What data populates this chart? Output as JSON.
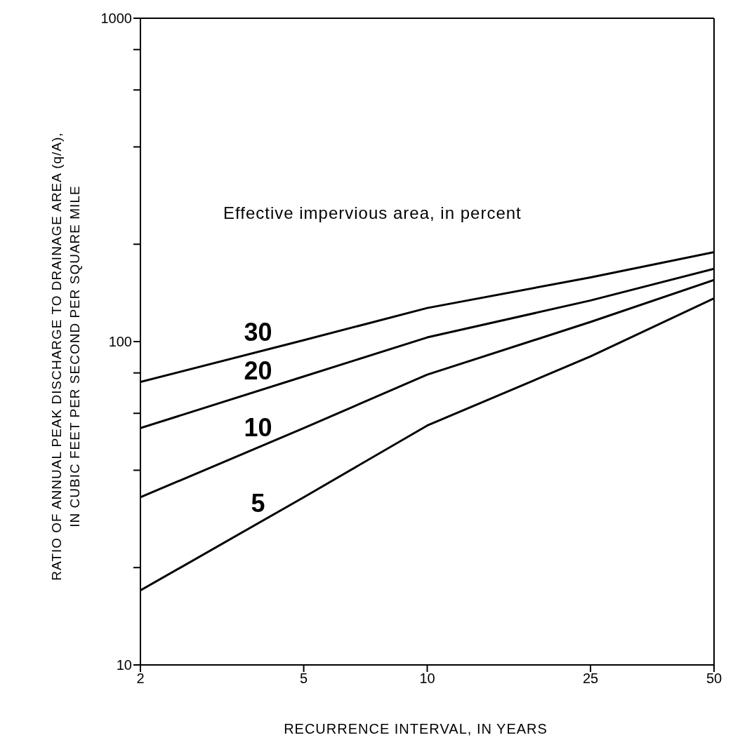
{
  "chart_data": {
    "type": "line",
    "xlabel": "RECURRENCE INTERVAL, IN YEARS",
    "ylabel": "RATIO OF ANNUAL PEAK DISCHARGE TO DRAINAGE AREA (q/A),\nIN CUBIC FEET PER SECOND PER SQUARE MILE",
    "annotations": [
      "Effective impervious area, in percent"
    ],
    "x": [
      2,
      5,
      10,
      25,
      50
    ],
    "series": [
      {
        "name": "30",
        "color": "#000000",
        "values": [
          75,
          101,
          127,
          158,
          189
        ]
      },
      {
        "name": "20",
        "color": "#000000",
        "values": [
          54,
          78,
          103,
          134,
          168
        ]
      },
      {
        "name": "10",
        "color": "#000000",
        "values": [
          33,
          54,
          79,
          115,
          155
        ]
      },
      {
        "name": "5",
        "color": "#000000",
        "values": [
          17,
          33,
          55,
          90,
          136
        ]
      }
    ],
    "log": "xy",
    "xlim": [
      2,
      50
    ],
    "ylim": [
      10,
      1000
    ],
    "xticks": [
      2,
      5,
      10,
      25,
      50
    ],
    "yticks": [
      10,
      {
        "value": 20,
        "label": null
      },
      {
        "value": 40,
        "label": null
      },
      {
        "value": 60,
        "label": null
      },
      {
        "value": 80,
        "label": null
      },
      100,
      {
        "value": 200,
        "label": null
      },
      {
        "value": 400,
        "label": null
      },
      {
        "value": 600,
        "label": null
      },
      {
        "value": 800,
        "label": null
      },
      1000
    ],
    "grid": false,
    "marker": "none",
    "line_style": "solid"
  }
}
